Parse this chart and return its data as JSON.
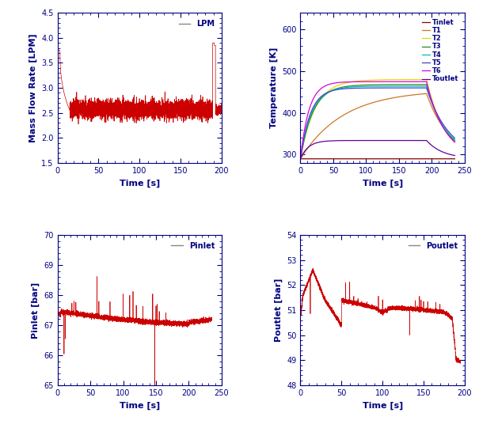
{
  "ax1": {
    "ylabel": "Mass Flow Rate [LPM]",
    "xlabel": "Time [s]",
    "xlim": [
      0,
      200
    ],
    "ylim": [
      1.5,
      4.5
    ],
    "yticks": [
      1.5,
      2.0,
      2.5,
      3.0,
      3.5,
      4.0,
      4.5
    ],
    "xticks": [
      0,
      50,
      100,
      150,
      200
    ],
    "legend": "LPM",
    "line_color": "#cc0000"
  },
  "ax2": {
    "ylabel": "Temperature [K]",
    "xlabel": "Time [s]",
    "xlim": [
      0,
      250
    ],
    "ylim": [
      280,
      640
    ],
    "yticks": [
      300,
      400,
      500,
      600
    ],
    "xticks": [
      0,
      50,
      100,
      150,
      200,
      250
    ],
    "legends": [
      "Tinlet",
      "T1",
      "T2",
      "T3",
      "T4",
      "T5",
      "T6",
      "Toutlet"
    ],
    "line_colors": [
      "#8b0000",
      "#cc7722",
      "#dddd00",
      "#228b22",
      "#00bbbb",
      "#4444cc",
      "#dd00dd",
      "#660099"
    ]
  },
  "ax3": {
    "ylabel": "Pinlet [bar]",
    "xlabel": "Time [s]",
    "xlim": [
      0,
      250
    ],
    "ylim": [
      65,
      70
    ],
    "yticks": [
      65,
      66,
      67,
      68,
      69,
      70
    ],
    "xticks": [
      0,
      50,
      100,
      150,
      200,
      250
    ],
    "legend": "Pinlet",
    "line_color": "#cc0000",
    "legend_line_color": "#555555"
  },
  "ax4": {
    "ylabel": "Poutlet [bar]",
    "xlabel": "Time [s]",
    "xlim": [
      0,
      200
    ],
    "ylim": [
      48,
      54
    ],
    "yticks": [
      48,
      49,
      50,
      51,
      52,
      53,
      54
    ],
    "xticks": [
      0,
      50,
      100,
      150,
      200
    ],
    "legend": "Poutlet",
    "line_color": "#cc0000",
    "legend_line_color": "#555555"
  },
  "label_color": "#000080",
  "tick_color": "#000080",
  "spine_color": "#000080",
  "figure_size": [
    6.05,
    5.41
  ],
  "dpi": 100
}
